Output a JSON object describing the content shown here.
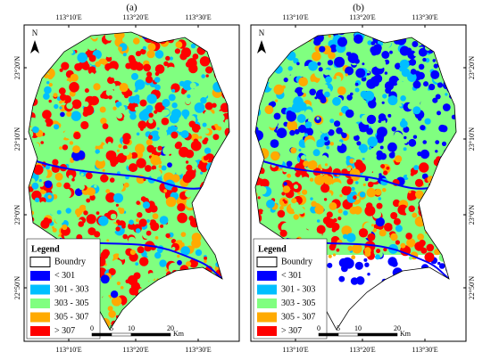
{
  "panels": [
    {
      "label": "(a)",
      "top_ticks": [
        "113°10'E",
        "113°20'E",
        "113°30'E"
      ],
      "bottom_ticks": [
        "113°10'E",
        "113°20'E",
        "113°30'E"
      ],
      "side_ticks": [
        "23°20'N",
        "23°10'N",
        "23°0'N",
        "22°50'N"
      ],
      "side": "left"
    },
    {
      "label": "(b)",
      "top_ticks": [
        "113°10'E",
        "113°20'E",
        "113°30'E"
      ],
      "bottom_ticks": [
        "113°10'E",
        "113°20'E",
        "113°30'E"
      ],
      "side_ticks": [
        "23°20'N",
        "23°10'N",
        "23°0'N",
        "22°50'N"
      ],
      "side": "right"
    }
  ],
  "north": "N",
  "legend": {
    "title": "Legend",
    "items": [
      {
        "label": "Boundry",
        "color": "#ffffff"
      },
      {
        "label": "< 301",
        "color": "#0000ff"
      },
      {
        "label": "301 - 303",
        "color": "#00bfff"
      },
      {
        "label": "303 - 305",
        "color": "#80ff80"
      },
      {
        "label": "305 - 307",
        "color": "#ffaa00"
      },
      {
        "label": "> 307",
        "color": "#ff0000"
      }
    ]
  },
  "scale_bar": {
    "ticks": [
      0,
      5,
      10,
      20
    ],
    "unit": "Km"
  }
}
